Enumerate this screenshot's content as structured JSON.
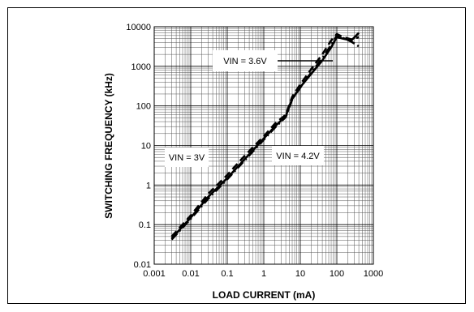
{
  "chart_data": {
    "type": "line",
    "title": "",
    "xlabel": "LOAD CURRENT (mA)",
    "ylabel": "SWITCHING FREQUENCY (kHz)",
    "x_scale": "log",
    "y_scale": "log",
    "xlim": [
      0.001,
      1000
    ],
    "ylim": [
      0.01,
      10000
    ],
    "grid": true,
    "x_ticks": [
      "0.001",
      "0.01",
      "0.1",
      "1",
      "10",
      "100",
      "1000"
    ],
    "y_ticks": [
      "0.01",
      "0.1",
      "1",
      "10",
      "100",
      "1000",
      "10000"
    ],
    "series": [
      {
        "name": "VIN = 3V",
        "style": "solid",
        "x": [
          0.003,
          0.01,
          0.03,
          0.1,
          0.3,
          1,
          2,
          4,
          6,
          10,
          20,
          40,
          70,
          100,
          150,
          250,
          400
        ],
        "y": [
          0.045,
          0.15,
          0.5,
          1.5,
          4.5,
          15,
          30,
          55,
          150,
          300,
          650,
          1400,
          3000,
          5500,
          5000,
          4500,
          7000
        ]
      },
      {
        "name": "VIN = 3.6V",
        "style": "dash-dot",
        "x": [
          0.003,
          0.01,
          0.03,
          0.1,
          0.3,
          1,
          2,
          4,
          6,
          10,
          20,
          40,
          70,
          100,
          150,
          250,
          400
        ],
        "y": [
          0.042,
          0.14,
          0.45,
          1.4,
          4.2,
          14,
          28,
          52,
          145,
          290,
          700,
          1600,
          3500,
          6000,
          5200,
          4200,
          3200
        ]
      },
      {
        "name": "VIN = 4.2V",
        "style": "dashed",
        "x": [
          0.003,
          0.01,
          0.03,
          0.1,
          0.3,
          1,
          2,
          4,
          6,
          10,
          20,
          40,
          70,
          100,
          150,
          250,
          400
        ],
        "y": [
          0.05,
          0.17,
          0.6,
          1.8,
          5.5,
          17,
          35,
          60,
          170,
          350,
          850,
          2000,
          4500,
          6500,
          5500,
          4800,
          5500
        ]
      }
    ],
    "annotations": [
      {
        "text": "VIN = 3.6V"
      },
      {
        "text": "VIN = 3V"
      },
      {
        "text": "VIN = 4.2V"
      }
    ]
  }
}
